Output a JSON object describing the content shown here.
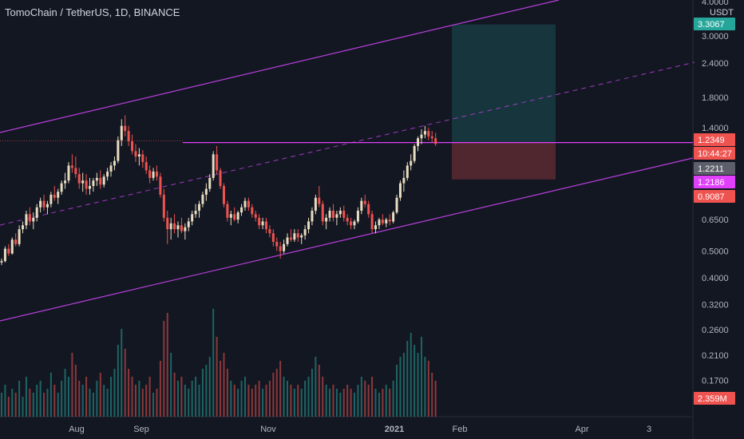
{
  "header": {
    "title": "TomoChain / TetherUS, 1D, BINANCE"
  },
  "chart_data": {
    "type": "candlestick",
    "title": "TomoChain / TetherUS, 1D, BINANCE",
    "y_unit": "USDT",
    "y_scale": "log",
    "ylim": [
      0.185,
      4.0
    ],
    "y_ticks": [
      "4.0000",
      "3.0000",
      "2.4000",
      "1.8000",
      "1.4000",
      "0.6500",
      "0.5000",
      "0.4000",
      "0.3200",
      "0.2600",
      "0.2100",
      "0.1700"
    ],
    "x_ticks": [
      "Aug",
      "Sep",
      "Nov",
      "2021",
      "Feb",
      "Apr",
      "3"
    ],
    "price_badges": [
      {
        "label": "3.3067",
        "color": "#26a69a"
      },
      {
        "label": "1.2349",
        "color": "#ef5350"
      },
      {
        "label": "10:44:27",
        "color": "#ef5350"
      },
      {
        "label": "1.2211",
        "color": "#5d606b"
      },
      {
        "label": "1.2186",
        "color": "#e040fb"
      },
      {
        "label": "0.9087",
        "color": "#ef5350"
      },
      {
        "label": "2.359M",
        "color": "#ef5350"
      }
    ],
    "horizontal_level": 1.2349,
    "position_tool": {
      "entry": 1.2349,
      "target": 3.3067,
      "stop": 0.9087
    },
    "colors": {
      "up": "#26a69a",
      "down": "#ef5350",
      "candle_up": "#e8dcc0",
      "channel": "#b83fdc",
      "level": "#e040fb"
    },
    "candles": [
      [
        0.455,
        0.47,
        0.445,
        0.46
      ],
      [
        0.46,
        0.52,
        0.455,
        0.51
      ],
      [
        0.51,
        0.53,
        0.48,
        0.49
      ],
      [
        0.49,
        0.56,
        0.485,
        0.55
      ],
      [
        0.55,
        0.58,
        0.52,
        0.53
      ],
      [
        0.53,
        0.62,
        0.52,
        0.6
      ],
      [
        0.6,
        0.64,
        0.58,
        0.62
      ],
      [
        0.62,
        0.7,
        0.6,
        0.68
      ],
      [
        0.68,
        0.72,
        0.62,
        0.64
      ],
      [
        0.64,
        0.69,
        0.6,
        0.66
      ],
      [
        0.66,
        0.74,
        0.64,
        0.72
      ],
      [
        0.72,
        0.78,
        0.69,
        0.76
      ],
      [
        0.76,
        0.8,
        0.7,
        0.72
      ],
      [
        0.72,
        0.76,
        0.68,
        0.74
      ],
      [
        0.74,
        0.82,
        0.72,
        0.8
      ],
      [
        0.8,
        0.86,
        0.76,
        0.78
      ],
      [
        0.78,
        0.84,
        0.74,
        0.82
      ],
      [
        0.82,
        0.9,
        0.8,
        0.88
      ],
      [
        0.88,
        0.96,
        0.84,
        0.9
      ],
      [
        0.9,
        1.05,
        0.88,
        1.02
      ],
      [
        1.02,
        1.12,
        0.96,
        1.0
      ],
      [
        1.0,
        1.1,
        0.92,
        0.95
      ],
      [
        0.95,
        1.0,
        0.84,
        0.88
      ],
      [
        0.88,
        0.96,
        0.82,
        0.9
      ],
      [
        0.9,
        0.95,
        0.8,
        0.84
      ],
      [
        0.84,
        0.92,
        0.8,
        0.86
      ],
      [
        0.86,
        0.92,
        0.82,
        0.9
      ],
      [
        0.9,
        0.96,
        0.86,
        0.92
      ],
      [
        0.92,
        0.98,
        0.84,
        0.87
      ],
      [
        0.87,
        0.95,
        0.85,
        0.93
      ],
      [
        0.93,
        1.0,
        0.9,
        0.97
      ],
      [
        0.97,
        1.05,
        0.93,
        1.02
      ],
      [
        1.02,
        1.1,
        0.98,
        1.06
      ],
      [
        1.06,
        1.3,
        1.04,
        1.26
      ],
      [
        1.26,
        1.5,
        1.2,
        1.42
      ],
      [
        1.42,
        1.55,
        1.3,
        1.36
      ],
      [
        1.36,
        1.42,
        1.2,
        1.25
      ],
      [
        1.25,
        1.32,
        1.12,
        1.15
      ],
      [
        1.15,
        1.22,
        1.05,
        1.1
      ],
      [
        1.1,
        1.18,
        1.02,
        1.12
      ],
      [
        1.12,
        1.16,
        1.0,
        1.05
      ],
      [
        1.05,
        1.1,
        0.95,
        0.98
      ],
      [
        0.98,
        1.02,
        0.88,
        0.92
      ],
      [
        0.92,
        1.0,
        0.9,
        0.97
      ],
      [
        0.97,
        1.02,
        0.9,
        0.93
      ],
      [
        0.93,
        0.96,
        0.78,
        0.8
      ],
      [
        0.8,
        0.84,
        0.64,
        0.66
      ],
      [
        0.66,
        0.7,
        0.53,
        0.6
      ],
      [
        0.6,
        0.66,
        0.55,
        0.63
      ],
      [
        0.63,
        0.68,
        0.58,
        0.6
      ],
      [
        0.6,
        0.64,
        0.56,
        0.62
      ],
      [
        0.62,
        0.66,
        0.58,
        0.59
      ],
      [
        0.59,
        0.63,
        0.55,
        0.61
      ],
      [
        0.61,
        0.66,
        0.59,
        0.64
      ],
      [
        0.64,
        0.7,
        0.62,
        0.68
      ],
      [
        0.68,
        0.74,
        0.66,
        0.7
      ],
      [
        0.7,
        0.76,
        0.66,
        0.74
      ],
      [
        0.74,
        0.82,
        0.72,
        0.8
      ],
      [
        0.8,
        0.88,
        0.76,
        0.84
      ],
      [
        0.84,
        0.95,
        0.82,
        0.92
      ],
      [
        0.92,
        1.15,
        0.9,
        1.12
      ],
      [
        1.12,
        1.2,
        0.95,
        0.98
      ],
      [
        0.98,
        1.0,
        0.84,
        0.86
      ],
      [
        0.86,
        0.88,
        0.72,
        0.74
      ],
      [
        0.74,
        0.76,
        0.64,
        0.66
      ],
      [
        0.66,
        0.7,
        0.62,
        0.68
      ],
      [
        0.68,
        0.72,
        0.64,
        0.65
      ],
      [
        0.65,
        0.7,
        0.63,
        0.69
      ],
      [
        0.69,
        0.74,
        0.67,
        0.72
      ],
      [
        0.72,
        0.78,
        0.7,
        0.76
      ],
      [
        0.76,
        0.78,
        0.7,
        0.72
      ],
      [
        0.72,
        0.74,
        0.66,
        0.68
      ],
      [
        0.68,
        0.7,
        0.64,
        0.66
      ],
      [
        0.66,
        0.68,
        0.6,
        0.62
      ],
      [
        0.62,
        0.66,
        0.6,
        0.64
      ],
      [
        0.64,
        0.66,
        0.58,
        0.6
      ],
      [
        0.6,
        0.62,
        0.56,
        0.58
      ],
      [
        0.58,
        0.6,
        0.52,
        0.54
      ],
      [
        0.54,
        0.56,
        0.5,
        0.52
      ],
      [
        0.52,
        0.54,
        0.47,
        0.5
      ],
      [
        0.5,
        0.55,
        0.49,
        0.53
      ],
      [
        0.53,
        0.58,
        0.52,
        0.56
      ],
      [
        0.56,
        0.6,
        0.54,
        0.55
      ],
      [
        0.55,
        0.6,
        0.54,
        0.58
      ],
      [
        0.58,
        0.6,
        0.54,
        0.56
      ],
      [
        0.56,
        0.58,
        0.53,
        0.57
      ],
      [
        0.57,
        0.62,
        0.55,
        0.6
      ],
      [
        0.6,
        0.66,
        0.58,
        0.64
      ],
      [
        0.64,
        0.72,
        0.62,
        0.7
      ],
      [
        0.7,
        0.8,
        0.68,
        0.78
      ],
      [
        0.78,
        0.86,
        0.72,
        0.74
      ],
      [
        0.74,
        0.76,
        0.62,
        0.64
      ],
      [
        0.64,
        0.68,
        0.6,
        0.66
      ],
      [
        0.66,
        0.72,
        0.64,
        0.7
      ],
      [
        0.7,
        0.74,
        0.64,
        0.66
      ],
      [
        0.66,
        0.7,
        0.62,
        0.68
      ],
      [
        0.68,
        0.72,
        0.66,
        0.7
      ],
      [
        0.7,
        0.73,
        0.64,
        0.66
      ],
      [
        0.66,
        0.68,
        0.62,
        0.64
      ],
      [
        0.64,
        0.66,
        0.6,
        0.62
      ],
      [
        0.62,
        0.65,
        0.6,
        0.64
      ],
      [
        0.64,
        0.72,
        0.63,
        0.7
      ],
      [
        0.7,
        0.78,
        0.68,
        0.76
      ],
      [
        0.76,
        0.8,
        0.72,
        0.74
      ],
      [
        0.74,
        0.76,
        0.66,
        0.68
      ],
      [
        0.68,
        0.7,
        0.58,
        0.6
      ],
      [
        0.6,
        0.64,
        0.58,
        0.62
      ],
      [
        0.62,
        0.66,
        0.6,
        0.65
      ],
      [
        0.65,
        0.68,
        0.62,
        0.63
      ],
      [
        0.63,
        0.66,
        0.61,
        0.65
      ],
      [
        0.65,
        0.68,
        0.62,
        0.64
      ],
      [
        0.64,
        0.7,
        0.63,
        0.69
      ],
      [
        0.69,
        0.8,
        0.68,
        0.78
      ],
      [
        0.78,
        0.9,
        0.76,
        0.88
      ],
      [
        0.88,
        0.98,
        0.82,
        0.92
      ],
      [
        0.92,
        1.05,
        0.9,
        1.02
      ],
      [
        1.02,
        1.12,
        0.98,
        1.06
      ],
      [
        1.06,
        1.22,
        1.04,
        1.2
      ],
      [
        1.2,
        1.3,
        1.15,
        1.28
      ],
      [
        1.28,
        1.38,
        1.22,
        1.32
      ],
      [
        1.32,
        1.42,
        1.28,
        1.36
      ],
      [
        1.36,
        1.4,
        1.26,
        1.3
      ],
      [
        1.3,
        1.36,
        1.24,
        1.28
      ],
      [
        1.28,
        1.34,
        1.2,
        1.2211
      ]
    ],
    "volume": [
      0.6,
      0.8,
      0.5,
      0.7,
      0.6,
      0.9,
      0.5,
      1.0,
      0.7,
      0.6,
      0.8,
      0.9,
      0.6,
      0.7,
      1.1,
      0.8,
      0.6,
      0.9,
      1.2,
      1.0,
      1.6,
      1.3,
      0.9,
      0.8,
      1.0,
      0.7,
      0.6,
      0.9,
      1.1,
      0.8,
      0.7,
      1.0,
      1.2,
      1.8,
      2.2,
      1.7,
      1.2,
      1.0,
      0.8,
      0.9,
      0.7,
      0.8,
      1.0,
      0.6,
      0.7,
      1.4,
      2.4,
      2.6,
      1.6,
      1.1,
      0.9,
      1.0,
      0.8,
      0.7,
      0.9,
      1.0,
      0.8,
      1.2,
      1.3,
      1.5,
      2.7,
      2.0,
      1.4,
      1.6,
      1.2,
      0.9,
      0.8,
      0.7,
      0.9,
      1.0,
      0.8,
      0.7,
      0.8,
      0.9,
      0.7,
      0.8,
      0.9,
      1.1,
      1.2,
      1.4,
      1.0,
      0.9,
      0.8,
      0.7,
      0.8,
      0.7,
      0.9,
      1.0,
      1.2,
      1.5,
      1.3,
      1.0,
      0.8,
      0.7,
      0.8,
      0.7,
      0.6,
      0.7,
      0.8,
      0.7,
      0.6,
      0.8,
      1.0,
      0.9,
      0.8,
      1.0,
      0.7,
      0.6,
      0.7,
      0.8,
      0.7,
      0.9,
      1.3,
      1.5,
      1.6,
      1.9,
      2.1,
      1.8,
      1.6,
      2.0,
      1.5,
      1.4,
      1.1,
      0.9
    ]
  }
}
